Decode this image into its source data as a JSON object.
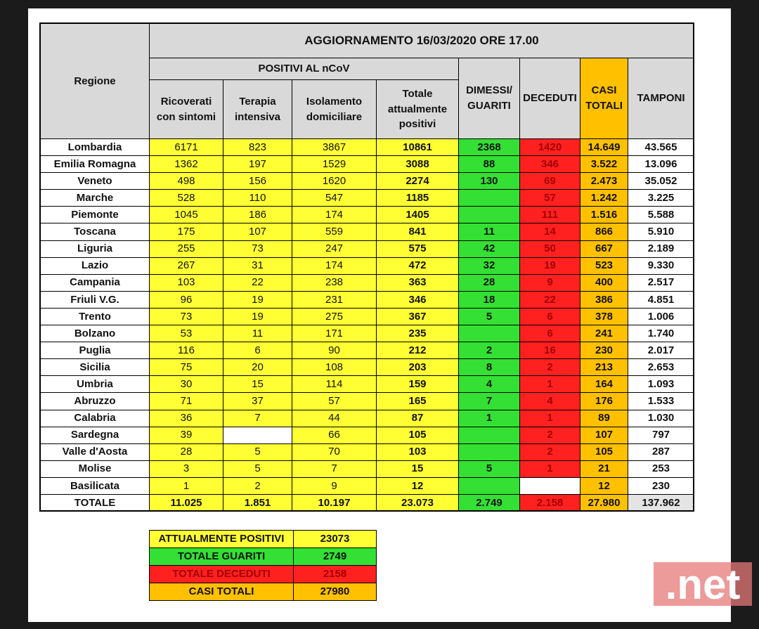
{
  "table": {
    "title": "AGGIORNAMENTO 16/03/2020 ORE 17.00",
    "region_header": "Regione",
    "group_header": "POSITIVI AL nCoV",
    "columns": [
      "Ricoverati con sintomi",
      "Terapia intensiva",
      "Isolamento domiciliare",
      "Totale attualmente positivi",
      "DIMESSI/ GUARITI",
      "DECEDUTI",
      "CASI TOTALI",
      "TAMPONI"
    ],
    "rows": [
      [
        "Lombardia",
        "6171",
        "823",
        "3867",
        "10861",
        "2368",
        "1420",
        "14.649",
        "43.565"
      ],
      [
        "Emilia Romagna",
        "1362",
        "197",
        "1529",
        "3088",
        "88",
        "346",
        "3.522",
        "13.096"
      ],
      [
        "Veneto",
        "498",
        "156",
        "1620",
        "2274",
        "130",
        "69",
        "2.473",
        "35.052"
      ],
      [
        "Marche",
        "528",
        "110",
        "547",
        "1185",
        null,
        "57",
        "1.242",
        "3.225"
      ],
      [
        "Piemonte",
        "1045",
        "186",
        "174",
        "1405",
        null,
        "111",
        "1.516",
        "5.588"
      ],
      [
        "Toscana",
        "175",
        "107",
        "559",
        "841",
        "11",
        "14",
        "866",
        "5.910"
      ],
      [
        "Liguria",
        "255",
        "73",
        "247",
        "575",
        "42",
        "50",
        "667",
        "2.189"
      ],
      [
        "Lazio",
        "267",
        "31",
        "174",
        "472",
        "32",
        "19",
        "523",
        "9.330"
      ],
      [
        "Campania",
        "103",
        "22",
        "238",
        "363",
        "28",
        "9",
        "400",
        "2.517"
      ],
      [
        "Friuli V.G.",
        "96",
        "19",
        "231",
        "346",
        "18",
        "22",
        "386",
        "4.851"
      ],
      [
        "Trento",
        "73",
        "19",
        "275",
        "367",
        "5",
        "6",
        "378",
        "1.006"
      ],
      [
        "Bolzano",
        "53",
        "11",
        "171",
        "235",
        null,
        "6",
        "241",
        "1.740"
      ],
      [
        "Puglia",
        "116",
        "6",
        "90",
        "212",
        "2",
        "16",
        "230",
        "2.017"
      ],
      [
        "Sicilia",
        "75",
        "20",
        "108",
        "203",
        "8",
        "2",
        "213",
        "2.653"
      ],
      [
        "Umbria",
        "30",
        "15",
        "114",
        "159",
        "4",
        "1",
        "164",
        "1.093"
      ],
      [
        "Abruzzo",
        "71",
        "37",
        "57",
        "165",
        "7",
        "4",
        "176",
        "1.533"
      ],
      [
        "Calabria",
        "36",
        "7",
        "44",
        "87",
        "1",
        "1",
        "89",
        "1.030"
      ],
      [
        "Sardegna",
        "39",
        null,
        "66",
        "105",
        null,
        "2",
        "107",
        "797"
      ],
      [
        "Valle d'Aosta",
        "28",
        "5",
        "70",
        "103",
        null,
        "2",
        "105",
        "287"
      ],
      [
        "Molise",
        "3",
        "5",
        "7",
        "15",
        "5",
        "1",
        "21",
        "253"
      ],
      [
        "Basilicata",
        "1",
        "2",
        "9",
        "12",
        null,
        null,
        "12",
        "230"
      ]
    ],
    "total": [
      "TOTALE",
      "11.025",
      "1.851",
      "10.197",
      "23.073",
      "2.749",
      "2.158",
      "27.980",
      "137.962"
    ]
  },
  "summary": [
    [
      "ATTUALMENTE POSITIVI",
      "23073"
    ],
    [
      "TOTALE GUARITI",
      "2749"
    ],
    [
      "TOTALE DECEDUTI",
      "2158"
    ],
    [
      "CASI TOTALI",
      "27980"
    ]
  ],
  "watermark": ".net"
}
